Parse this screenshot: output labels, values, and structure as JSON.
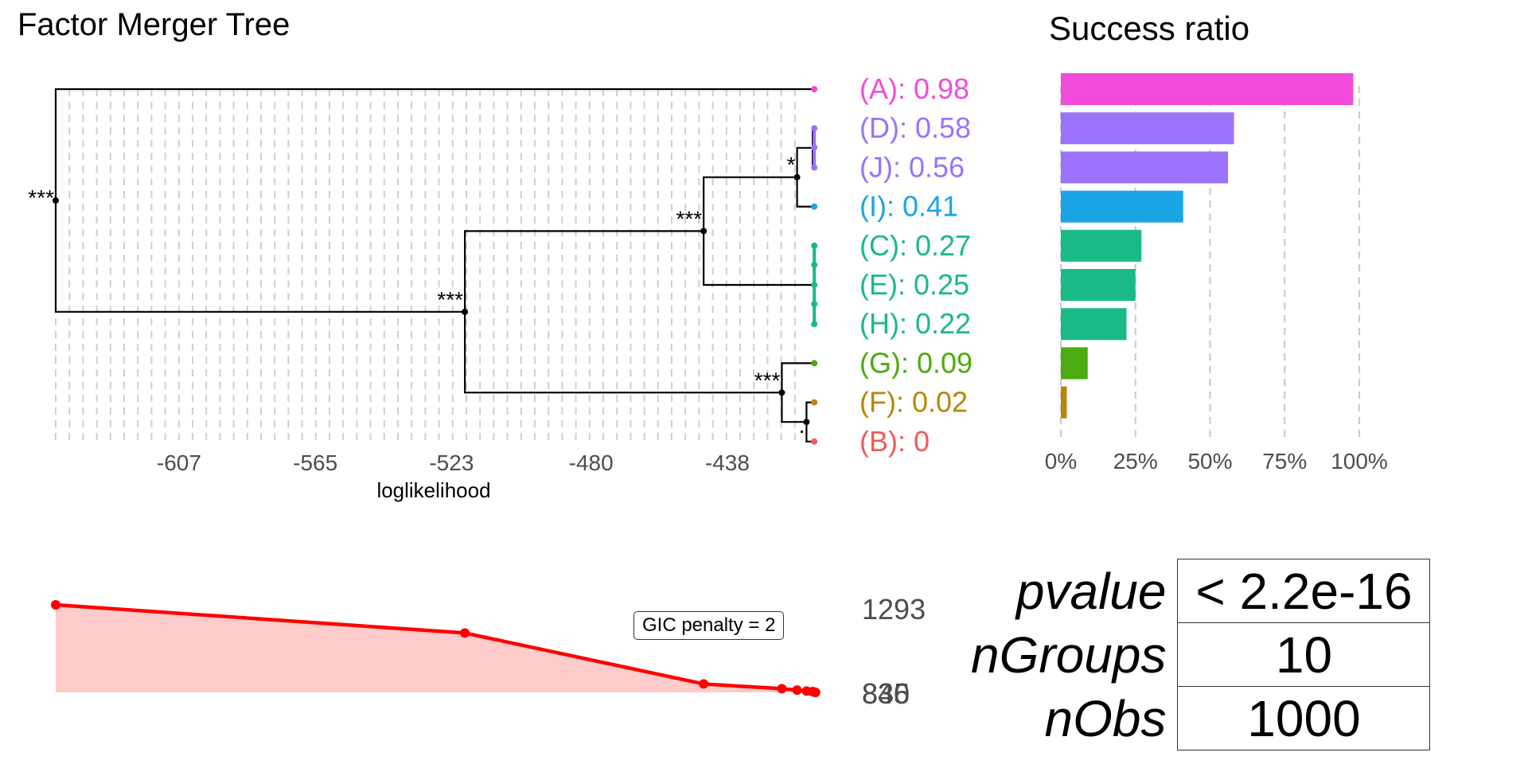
{
  "tree": {
    "title": "Factor Merger Tree",
    "xlabel": "loglikelihood",
    "ticks": [
      "-607",
      "-565",
      "-523",
      "-480",
      "-438"
    ],
    "leaves": [
      {
        "label": "(A): 0.98",
        "color": "#F14CD9"
      },
      {
        "label": "(D): 0.58",
        "color": "#9B72FB"
      },
      {
        "label": "(J): 0.56",
        "color": "#9B72FB"
      },
      {
        "label": "(I): 0.41",
        "color": "#1BA4E5"
      },
      {
        "label": "(C): 0.27",
        "color": "#1AB988"
      },
      {
        "label": "(E): 0.25",
        "color": "#1AB988"
      },
      {
        "label": "(H): 0.22",
        "color": "#1AB988"
      },
      {
        "label": "(G): 0.09",
        "color": "#4BAB10"
      },
      {
        "label": "(F): 0.02",
        "color": "#B8860B"
      },
      {
        "label": "(B): 0",
        "color": "#EF5B5B"
      }
    ],
    "significance": [
      "***",
      "***",
      "***",
      "***",
      "*",
      "."
    ]
  },
  "success": {
    "title": "Success ratio",
    "ticks": [
      "0%",
      "25%",
      "50%",
      "75%",
      "100%"
    ]
  },
  "gic": {
    "label": "GIC penalty = 2",
    "right_labels": [
      "1293",
      "840",
      "835",
      "836"
    ]
  },
  "stats": [
    {
      "label": "pvalue",
      "value": "< 2.2e-16"
    },
    {
      "label": "nGroups",
      "value": "10"
    },
    {
      "label": "nObs",
      "value": "1000"
    }
  ],
  "chart_data": [
    {
      "type": "line",
      "title": "Factor Merger Tree",
      "xlabel": "loglikelihood",
      "xlim": [
        -645,
        -411
      ],
      "x_ticks": [
        -607,
        -565,
        -523,
        -480,
        -438
      ],
      "merges": [
        {
          "groups": "F+B",
          "loglikelihood": -413.6,
          "significance": "."
        },
        {
          "groups": "D+J",
          "loglikelihood": -411.7,
          "significance": ""
        },
        {
          "groups": "DJ+I",
          "loglikelihood": -416.5,
          "significance": "*"
        },
        {
          "groups": "G+FB",
          "loglikelihood": -421.2,
          "significance": "***"
        },
        {
          "groups": "DJI+CEH",
          "loglikelihood": -445.3,
          "significance": "***"
        },
        {
          "groups": "DJICEH+GFB",
          "loglikelihood": -518.9,
          "significance": "***"
        },
        {
          "groups": "A+rest",
          "loglikelihood": -645.0,
          "significance": "***"
        }
      ],
      "grid": true
    },
    {
      "type": "bar",
      "title": "Success ratio",
      "categories": [
        "A",
        "D",
        "J",
        "I",
        "C",
        "E",
        "H",
        "G",
        "F",
        "B"
      ],
      "values": [
        0.98,
        0.58,
        0.56,
        0.41,
        0.27,
        0.25,
        0.22,
        0.09,
        0.02,
        0.0
      ],
      "xlim": [
        0,
        1
      ],
      "x_ticks": [
        "0%",
        "25%",
        "50%",
        "75%",
        "100%"
      ],
      "grid": true
    },
    {
      "type": "area",
      "title": "",
      "annotation": "GIC penalty = 2",
      "x": [
        -645,
        -518.9,
        -445.3,
        -421.2,
        -416.5,
        -413.6,
        -411.7,
        -411.2,
        -410.8
      ],
      "y": [
        1293,
        1146,
        880,
        855,
        848,
        843,
        840,
        838,
        836
      ]
    }
  ]
}
